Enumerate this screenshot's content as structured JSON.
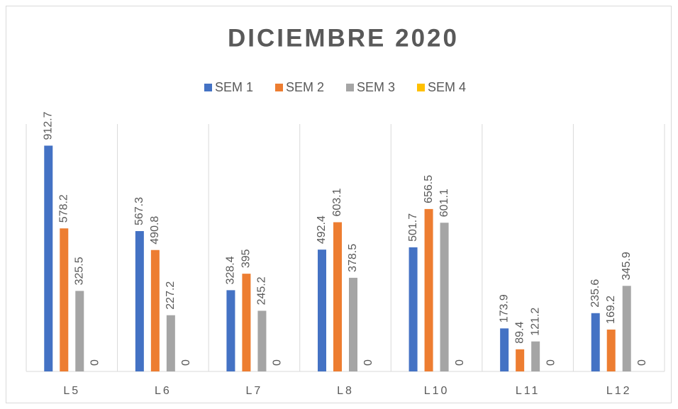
{
  "chart_data": {
    "type": "bar",
    "title": "DICIEMBRE 2020",
    "categories": [
      "L5",
      "L6",
      "L7",
      "L8",
      "L10",
      "L11",
      "L12"
    ],
    "series": [
      {
        "name": "SEM 1",
        "color": "#4472c4",
        "values": [
          912.7,
          567.3,
          328.4,
          492.4,
          501.7,
          173.9,
          235.6
        ]
      },
      {
        "name": "SEM 2",
        "color": "#ed7d31",
        "values": [
          578.2,
          490.8,
          395,
          603.1,
          656.5,
          89.4,
          169.2
        ]
      },
      {
        "name": "SEM 3",
        "color": "#a5a5a5",
        "values": [
          325.5,
          227.2,
          245.2,
          378.5,
          601.1,
          121.2,
          345.9
        ]
      },
      {
        "name": "SEM 4",
        "color": "#ffc000",
        "values": [
          0,
          0,
          0,
          0,
          0,
          0,
          0
        ]
      }
    ],
    "ylim": [
      0,
      1000
    ],
    "grid": true,
    "legend": "top"
  }
}
